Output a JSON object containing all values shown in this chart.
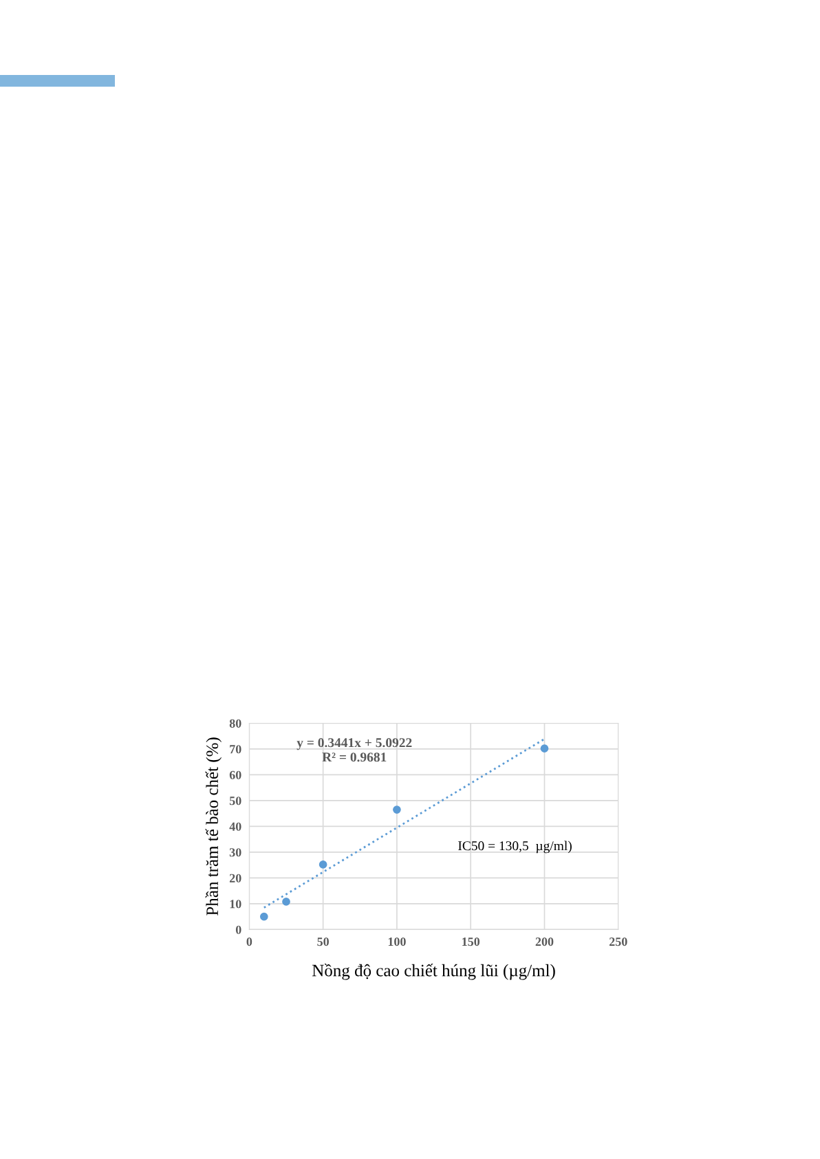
{
  "chart_data": {
    "type": "scatter",
    "xlabel": "Nồng độ cao chiết húng lũi (µg/ml)",
    "ylabel": "Phần trăm tế bào chết (%)",
    "series": [
      {
        "color": "#5b9bd5",
        "x": [
          10,
          25,
          50,
          100,
          200
        ],
        "values": [
          5,
          10.8,
          25.2,
          46.5,
          70.2
        ],
        "marker": "circle"
      },
      {
        "type": "line",
        "color": "#5b9bd5",
        "x": [
          10,
          200
        ],
        "values": [
          8.5,
          73.9
        ],
        "line_style": "dotted",
        "marker": "none"
      }
    ],
    "xlim": [
      0,
      250
    ],
    "xticks": [
      0,
      50,
      100,
      150,
      200,
      250
    ],
    "ylim": [
      0,
      80
    ],
    "yticks": [
      0,
      10,
      20,
      30,
      40,
      50,
      60,
      70,
      80
    ],
    "grid": true,
    "legend": false,
    "annotations": [
      "y = 0.3441x + 5.0922",
      "R² = 0.9681",
      "IC50 = 130,5  µg/ml)"
    ]
  }
}
